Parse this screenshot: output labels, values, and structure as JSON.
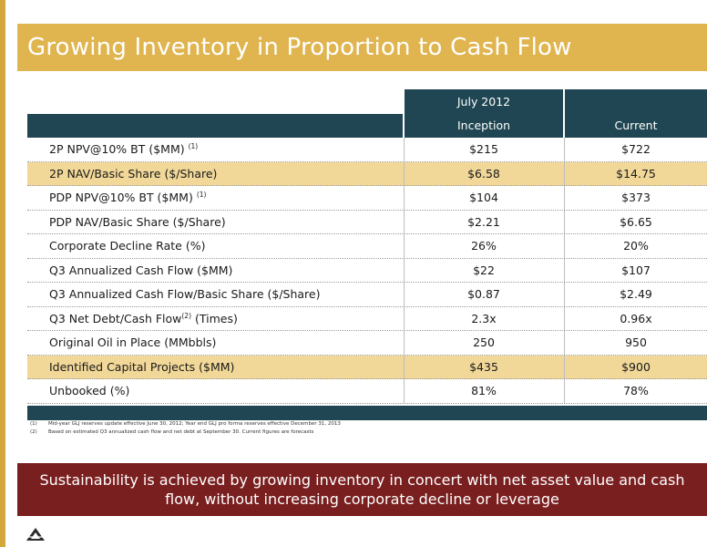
{
  "title": "Growing Inventory in Proportion to Cash Flow",
  "table": {
    "group_header": "July 2012",
    "columns": [
      "Inception",
      "Current"
    ],
    "rows": [
      {
        "label": "2P NPV@10% BT ($MM)",
        "sup": "(1)",
        "inception": "$215",
        "current": "$722",
        "highlight": false
      },
      {
        "label": "2P NAV/Basic Share ($/Share)",
        "sup": "",
        "inception": "$6.58",
        "current": "$14.75",
        "highlight": true
      },
      {
        "label": "PDP NPV@10% BT ($MM)",
        "sup": "(1)",
        "inception": "$104",
        "current": "$373",
        "highlight": false
      },
      {
        "label": "PDP NAV/Basic Share ($/Share)",
        "sup": "",
        "inception": "$2.21",
        "current": "$6.65",
        "highlight": false
      },
      {
        "label": "Corporate Decline Rate (%)",
        "sup": "",
        "inception": "26%",
        "current": "20%",
        "highlight": false
      },
      {
        "label": "Q3 Annualized Cash Flow ($MM)",
        "sup": "",
        "inception": "$22",
        "current": "$107",
        "highlight": false
      },
      {
        "label": "Q3 Annualized Cash Flow/Basic Share ($/Share)",
        "sup": "",
        "inception": "$0.87",
        "current": "$2.49",
        "highlight": false
      },
      {
        "label": "Q3 Net Debt/Cash Flow",
        "sup": "(2)",
        "label_after": " (Times)",
        "inception": "2.3x",
        "current": "0.96x",
        "highlight": false
      },
      {
        "label": "Original Oil in Place (MMbbls)",
        "sup": "",
        "inception": "250",
        "current": "950",
        "highlight": false
      },
      {
        "label": "Identified Capital Projects ($MM)",
        "sup": "",
        "inception": "$435",
        "current": "$900",
        "highlight": true
      },
      {
        "label": "Unbooked (%)",
        "sup": "",
        "inception": "81%",
        "current": "78%",
        "highlight": false
      }
    ]
  },
  "footnotes": [
    {
      "num": "(1)",
      "text": "Mid-year GLJ reserves update effective June 30, 2012; Year end GLJ pro forma reserves effective December 31, 2013"
    },
    {
      "num": "(2)",
      "text": "Based on estimated Q3 annualized cash flow and net debt at September 30. Current figures are forecasts"
    }
  ],
  "banner": {
    "line1": "Sustainability is achieved by growing inventory in concert with net asset value and cash",
    "line2": "flow, without increasing corporate decline or leverage"
  },
  "colors": {
    "title_bg": "#e0b54f",
    "header_bg": "#1f4652",
    "highlight_row": "#f1d798",
    "banner_bg": "#7a1f1f"
  },
  "icons": {
    "logo": "company-logo-icon"
  }
}
